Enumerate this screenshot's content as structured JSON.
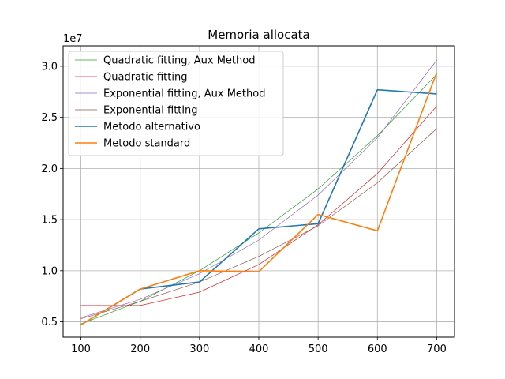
{
  "chart_data": {
    "type": "line",
    "title": "Memoria allocata",
    "xlabel": "",
    "ylabel": "",
    "y_offset_label": "1e7",
    "xlim": [
      70,
      730
    ],
    "ylim": [
      0.35,
      3.2
    ],
    "x_ticks": [
      100,
      200,
      300,
      400,
      500,
      600,
      700
    ],
    "y_ticks": [
      0.5,
      1.0,
      1.5,
      2.0,
      2.5,
      3.0
    ],
    "y_tick_labels": [
      "0.5",
      "1.0",
      "1.5",
      "2.0",
      "2.5",
      "3.0"
    ],
    "grid": true,
    "legend_position": "top-left",
    "x": [
      100,
      200,
      300,
      400,
      500,
      600,
      700
    ],
    "series": [
      {
        "name": "Quadratic fitting, Aux Method",
        "color": "#2ca02c",
        "width": 0.7,
        "values": [
          0.48,
          0.7,
          1.0,
          1.37,
          1.8,
          2.32,
          2.92
        ]
      },
      {
        "name": "Quadratic fitting",
        "color": "#d62728",
        "width": 0.7,
        "values": [
          0.66,
          0.66,
          0.79,
          1.06,
          1.45,
          1.95,
          2.61
        ]
      },
      {
        "name": "Exponential fitting, Aux Method",
        "color": "#9467bd",
        "width": 0.7,
        "values": [
          0.54,
          0.72,
          0.97,
          1.3,
          1.74,
          2.3,
          3.06
        ]
      },
      {
        "name": "Exponential fitting",
        "color": "#8c564b",
        "width": 0.7,
        "values": [
          0.53,
          0.7,
          0.89,
          1.14,
          1.44,
          1.86,
          2.39
        ]
      },
      {
        "name": "Metodo alternativo",
        "color": "#1f77b4",
        "width": 1.6,
        "values": [
          0.47,
          0.82,
          0.89,
          1.41,
          1.46,
          2.77,
          2.73
        ]
      },
      {
        "name": "Metodo standard",
        "color": "#ff7f0e",
        "width": 1.6,
        "values": [
          0.47,
          0.82,
          1.0,
          0.99,
          1.55,
          1.39,
          2.94
        ]
      }
    ]
  }
}
